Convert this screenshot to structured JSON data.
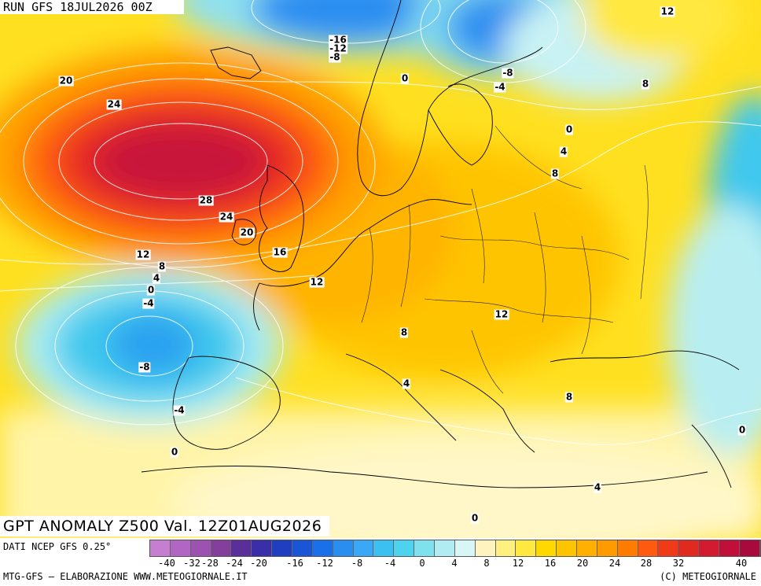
{
  "header": {
    "run_label": "RUN GFS 18JUL2026 00Z"
  },
  "title": {
    "text": "GPT ANOMALY Z500 Val. 12Z01AUG2026"
  },
  "footer": {
    "source": "DATI NCEP GFS 0.25°",
    "credit_left": "MTG-GFS – ELABORAZIONE WWW.METEOGIORNALE.IT",
    "credit_right": "(C) METEOGIORNALE"
  },
  "colorbar": {
    "colors": [
      "#c67fd0",
      "#b266c4",
      "#9c52b0",
      "#843f9c",
      "#5a2f9a",
      "#3a2fa8",
      "#1f3fc0",
      "#1a55d6",
      "#1a70e8",
      "#2a8ef0",
      "#3aa8f4",
      "#3cc0f2",
      "#4dd3ee",
      "#7fe0ee",
      "#b0ecf2",
      "#d8f6f6",
      "#fff4c0",
      "#fff080",
      "#ffe840",
      "#ffd800",
      "#ffc400",
      "#ffb000",
      "#ff9a00",
      "#ff7c00",
      "#ff5a10",
      "#f03a18",
      "#e02a20",
      "#d21a30",
      "#c0103a",
      "#a80a3e"
    ],
    "ticks": [
      "-40",
      "-32",
      "-28",
      "-24",
      "-20",
      "-16",
      "-12",
      "-8",
      "-4",
      "0",
      "4",
      "8",
      "12",
      "16",
      "20",
      "24",
      "28",
      "32",
      "40"
    ]
  },
  "contour_labels": [
    {
      "text": "12"
    },
    {
      "text": "-16"
    },
    {
      "text": "-12"
    },
    {
      "text": "-8"
    },
    {
      "text": "0"
    },
    {
      "text": "-8"
    },
    {
      "text": "-4"
    },
    {
      "text": "8"
    },
    {
      "text": "0"
    },
    {
      "text": "4"
    },
    {
      "text": "8"
    },
    {
      "text": "20"
    },
    {
      "text": "24"
    },
    {
      "text": "28"
    },
    {
      "text": "24"
    },
    {
      "text": "20"
    },
    {
      "text": "16"
    },
    {
      "text": "12"
    },
    {
      "text": "8"
    },
    {
      "text": "4"
    },
    {
      "text": "0"
    },
    {
      "text": "-4"
    },
    {
      "text": "12"
    },
    {
      "text": "12"
    },
    {
      "text": "8"
    },
    {
      "text": "-8"
    },
    {
      "text": "4"
    },
    {
      "text": "8"
    },
    {
      "text": "-4"
    },
    {
      "text": "0"
    },
    {
      "text": "0"
    },
    {
      "text": "4"
    },
    {
      "text": "0"
    }
  ]
}
